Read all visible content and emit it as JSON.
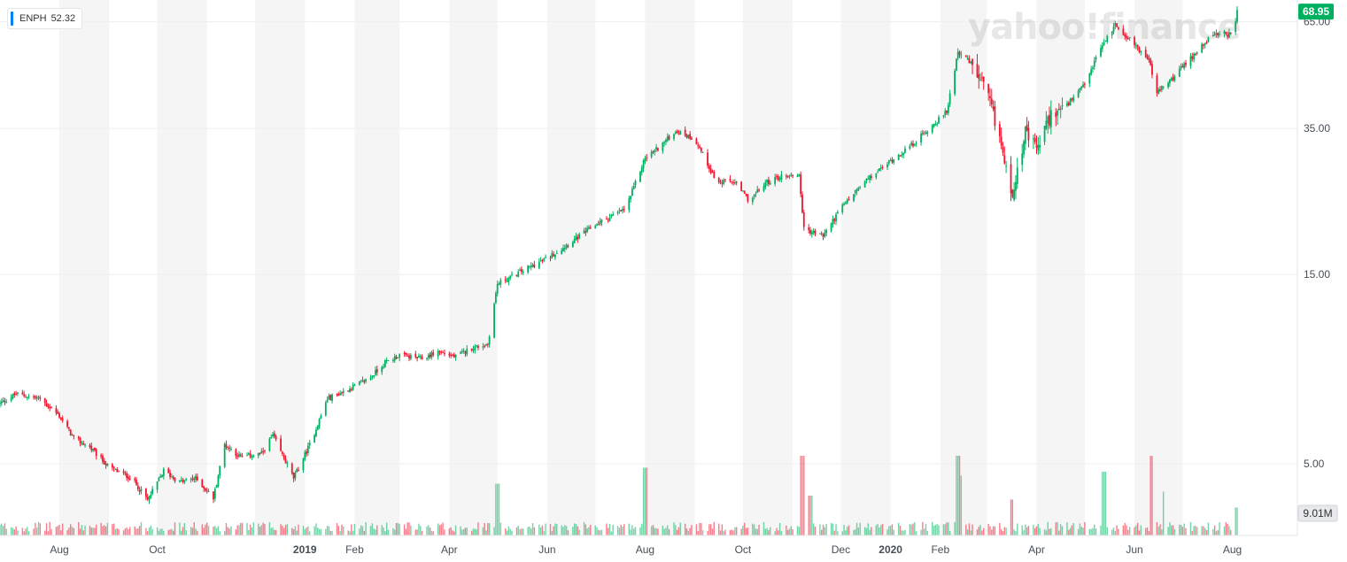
{
  "legend": {
    "symbol": "ENPH",
    "value": "52.32",
    "color": "#0081f2"
  },
  "watermark": "yahoo!finance",
  "colors": {
    "up": "#00b061",
    "down": "#f0162f",
    "grid": "#eceff2",
    "band": "#f5f5f5",
    "text": "#333333",
    "tag_bg": "#00b061"
  },
  "chart_data": {
    "type": "candlestick",
    "y_scale": "log",
    "xlim": [
      "2018-06-25",
      "2020-08-04"
    ],
    "ylim": [
      3.3,
      73
    ],
    "y_ticks": [
      {
        "value": 65,
        "label": "65.00"
      },
      {
        "value": 35,
        "label": "35.00"
      },
      {
        "value": 15,
        "label": "15.00"
      },
      {
        "value": 5,
        "label": "5.00"
      }
    ],
    "x_ticks": [
      {
        "date": "2018-08-01",
        "label": "Aug",
        "bold": false
      },
      {
        "date": "2018-10-01",
        "label": "Oct",
        "bold": false
      },
      {
        "date": "2019-01-01",
        "label": "2019",
        "bold": true
      },
      {
        "date": "2019-02-01",
        "label": "Feb",
        "bold": false
      },
      {
        "date": "2019-04-01",
        "label": "Apr",
        "bold": false
      },
      {
        "date": "2019-06-01",
        "label": "Jun",
        "bold": false
      },
      {
        "date": "2019-08-01",
        "label": "Aug",
        "bold": false
      },
      {
        "date": "2019-10-01",
        "label": "Oct",
        "bold": false
      },
      {
        "date": "2019-12-01",
        "label": "Dec",
        "bold": false
      },
      {
        "date": "2020-01-01",
        "label": "2020",
        "bold": true
      },
      {
        "date": "2020-02-01",
        "label": "Feb",
        "bold": false
      },
      {
        "date": "2020-04-01",
        "label": "Apr",
        "bold": false
      },
      {
        "date": "2020-06-01",
        "label": "Jun",
        "bold": false
      },
      {
        "date": "2020-08-01",
        "label": "Aug",
        "bold": false
      }
    ],
    "shaded_months": [
      [
        "2018-08-01",
        "2018-09-01"
      ],
      [
        "2018-10-01",
        "2018-11-01"
      ],
      [
        "2018-12-01",
        "2019-01-01"
      ],
      [
        "2019-02-01",
        "2019-03-01"
      ],
      [
        "2019-04-01",
        "2019-05-01"
      ],
      [
        "2019-06-01",
        "2019-07-01"
      ],
      [
        "2019-08-01",
        "2019-09-01"
      ],
      [
        "2019-10-01",
        "2019-11-01"
      ],
      [
        "2019-12-01",
        "2020-01-01"
      ],
      [
        "2020-02-01",
        "2020-03-01"
      ],
      [
        "2020-04-01",
        "2020-05-01"
      ],
      [
        "2020-06-01",
        "2020-07-01"
      ]
    ],
    "price_path": [
      [
        "2018-06-25",
        7.1
      ],
      [
        "2018-07-05",
        7.5
      ],
      [
        "2018-07-20",
        7.3
      ],
      [
        "2018-08-01",
        6.6
      ],
      [
        "2018-08-10",
        5.8
      ],
      [
        "2018-08-20",
        5.5
      ],
      [
        "2018-09-01",
        4.9
      ],
      [
        "2018-09-15",
        4.6
      ],
      [
        "2018-09-25",
        4.05
      ],
      [
        "2018-10-05",
        4.8
      ],
      [
        "2018-10-15",
        4.5
      ],
      [
        "2018-10-25",
        4.6
      ],
      [
        "2018-11-05",
        4.1
      ],
      [
        "2018-11-12",
        5.6
      ],
      [
        "2018-11-22",
        5.2
      ],
      [
        "2018-12-05",
        5.3
      ],
      [
        "2018-12-12",
        5.9
      ],
      [
        "2018-12-25",
        4.6
      ],
      [
        "2019-01-05",
        5.7
      ],
      [
        "2019-01-15",
        7.3
      ],
      [
        "2019-01-25",
        7.6
      ],
      [
        "2019-02-10",
        8.2
      ],
      [
        "2019-02-20",
        9.0
      ],
      [
        "2019-03-01",
        9.4
      ],
      [
        "2019-03-15",
        9.2
      ],
      [
        "2019-03-25",
        9.6
      ],
      [
        "2019-04-05",
        9.3
      ],
      [
        "2019-04-15",
        9.8
      ],
      [
        "2019-04-25",
        10.0
      ],
      [
        "2019-05-01",
        14.2
      ],
      [
        "2019-05-15",
        15.2
      ],
      [
        "2019-06-01",
        16.5
      ],
      [
        "2019-06-15",
        18.0
      ],
      [
        "2019-07-01",
        20.0
      ],
      [
        "2019-07-20",
        22.0
      ],
      [
        "2019-08-01",
        29.5
      ],
      [
        "2019-08-10",
        31.5
      ],
      [
        "2019-08-20",
        34.5
      ],
      [
        "2019-09-01",
        33.0
      ],
      [
        "2019-09-15",
        25.5
      ],
      [
        "2019-09-25",
        25.8
      ],
      [
        "2019-10-05",
        23.0
      ],
      [
        "2019-10-15",
        25.5
      ],
      [
        "2019-10-25",
        26.5
      ],
      [
        "2019-11-05",
        26.8
      ],
      [
        "2019-11-08",
        19.5
      ],
      [
        "2019-11-20",
        18.8
      ],
      [
        "2019-12-01",
        22.0
      ],
      [
        "2019-12-15",
        25.5
      ],
      [
        "2020-01-01",
        29.0
      ],
      [
        "2020-01-15",
        32.0
      ],
      [
        "2020-01-25",
        35.0
      ],
      [
        "2020-02-05",
        38.5
      ],
      [
        "2020-02-12",
        55.0
      ],
      [
        "2020-02-20",
        51.0
      ],
      [
        "2020-03-01",
        43.0
      ],
      [
        "2020-03-10",
        32.0
      ],
      [
        "2020-03-16",
        23.5
      ],
      [
        "2020-03-25",
        34.0
      ],
      [
        "2020-04-01",
        31.0
      ],
      [
        "2020-04-10",
        38.0
      ],
      [
        "2020-04-20",
        40.0
      ],
      [
        "2020-05-01",
        45.0
      ],
      [
        "2020-05-10",
        55.0
      ],
      [
        "2020-05-20",
        64.0
      ],
      [
        "2020-06-01",
        57.0
      ],
      [
        "2020-06-10",
        52.0
      ],
      [
        "2020-06-15",
        43.0
      ],
      [
        "2020-06-25",
        47.0
      ],
      [
        "2020-07-05",
        52.0
      ],
      [
        "2020-07-15",
        58.0
      ],
      [
        "2020-07-25",
        61.0
      ],
      [
        "2020-08-01",
        60.0
      ],
      [
        "2020-08-04",
        68.95
      ]
    ],
    "volume_spikes": [
      [
        "2019-05-01",
        0.65
      ],
      [
        "2019-08-01",
        0.85
      ],
      [
        "2019-11-07",
        1.0
      ],
      [
        "2019-11-12",
        0.5
      ],
      [
        "2020-02-12",
        1.0
      ],
      [
        "2020-02-13",
        0.75
      ],
      [
        "2020-03-16",
        0.45
      ],
      [
        "2020-05-13",
        0.8
      ],
      [
        "2020-06-12",
        1.0
      ],
      [
        "2020-06-13",
        0.7
      ],
      [
        "2020-06-20",
        0.55
      ],
      [
        "2020-08-04",
        0.35
      ]
    ],
    "last_price_tag": "68.95",
    "volume_tag": "9.01M"
  }
}
